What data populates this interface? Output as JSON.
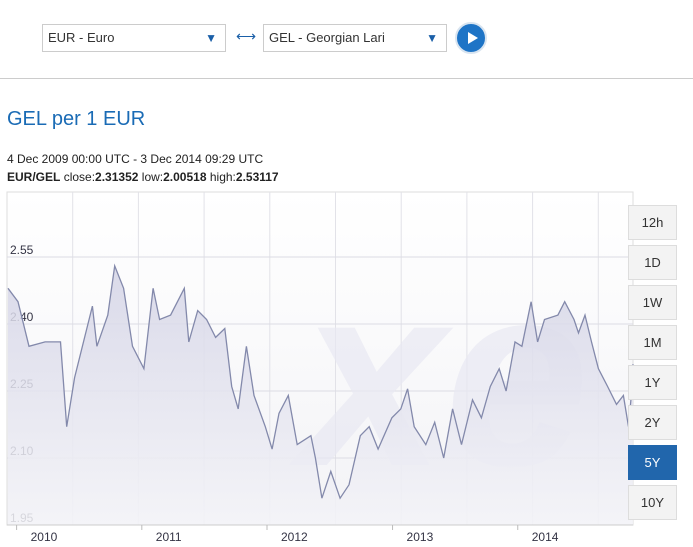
{
  "converter": {
    "from_value": "EUR - Euro",
    "to_value": "GEL - Georgian Lari",
    "swap_icon": "left-right-arrow-icon",
    "go_icon": "play-icon"
  },
  "title": "GEL per 1 EUR",
  "date_range": "4 Dec 2009 00:00 UTC - 3 Dec 2014 09:29 UTC",
  "stats": {
    "pair": "EUR/GEL",
    "close_label": "close:",
    "close": "2.31352",
    "low_label": "low:",
    "low": "2.00518",
    "high_label": "high:",
    "high": "2.53117"
  },
  "periods": [
    {
      "label": "12h"
    },
    {
      "label": "1D"
    },
    {
      "label": "1W"
    },
    {
      "label": "1M"
    },
    {
      "label": "1Y"
    },
    {
      "label": "2Y"
    },
    {
      "label": "5Y",
      "active": true
    },
    {
      "label": "10Y"
    }
  ],
  "colors": {
    "accent": "#1a6bb5",
    "line": "#8389ab",
    "fill": "#dcdcea",
    "active": "#2166ac"
  },
  "chart_data": {
    "type": "area",
    "xlabel": "",
    "ylabel": "",
    "xlim": [
      "2009-12-04",
      "2014-12-03"
    ],
    "ylim": [
      1.95,
      2.6
    ],
    "yticks": [
      "2.55",
      "2.40",
      "2.25",
      "2.10",
      "1.95"
    ],
    "xticks": [
      "2010",
      "2011",
      "2012",
      "2013",
      "2014"
    ],
    "grid": true,
    "watermark": "xe",
    "series": [
      {
        "x": [
          "2009-12-07",
          "2010-01-05",
          "2010-02-06",
          "2010-03-25",
          "2010-05-09",
          "2010-05-27",
          "2010-06-19",
          "2010-08-10",
          "2010-08-23",
          "2010-09-24",
          "2010-10-14",
          "2010-11-09",
          "2010-12-05",
          "2011-01-07",
          "2011-02-03",
          "2011-02-22",
          "2011-03-26",
          "2011-05-05",
          "2011-05-18",
          "2011-06-13",
          "2011-07-09",
          "2011-08-04",
          "2011-08-31",
          "2011-09-20",
          "2011-10-09",
          "2011-11-02",
          "2011-11-24",
          "2011-12-27",
          "2012-01-16",
          "2012-02-05",
          "2012-03-03",
          "2012-03-29",
          "2012-05-08",
          "2012-05-21",
          "2012-06-09",
          "2012-07-05",
          "2012-08-01",
          "2012-08-27",
          "2012-09-29",
          "2012-10-25",
          "2012-11-20",
          "2012-12-30",
          "2013-01-25",
          "2013-02-14",
          "2013-03-05",
          "2013-04-08",
          "2013-05-04",
          "2013-05-30",
          "2013-06-25",
          "2013-07-21",
          "2013-08-22",
          "2013-09-17",
          "2013-10-13",
          "2013-11-08",
          "2013-11-28",
          "2013-12-24",
          "2014-01-13",
          "2014-02-09",
          "2014-02-28",
          "2014-03-20",
          "2014-04-28",
          "2014-05-18",
          "2014-06-14",
          "2014-06-27",
          "2014-07-16",
          "2014-08-04",
          "2014-08-24",
          "2014-09-20",
          "2014-10-16",
          "2014-11-05",
          "2014-11-20",
          "2014-11-28",
          "2014-12-03"
        ],
        "y": [
          2.48,
          2.45,
          2.35,
          2.36,
          2.36,
          2.17,
          2.28,
          2.44,
          2.35,
          2.42,
          2.53,
          2.48,
          2.35,
          2.3,
          2.48,
          2.41,
          2.42,
          2.48,
          2.36,
          2.43,
          2.41,
          2.37,
          2.39,
          2.26,
          2.21,
          2.35,
          2.24,
          2.17,
          2.12,
          2.2,
          2.24,
          2.13,
          2.15,
          2.1,
          2.01,
          2.07,
          2.01,
          2.04,
          2.15,
          2.17,
          2.12,
          2.19,
          2.21,
          2.255,
          2.17,
          2.13,
          2.18,
          2.1,
          2.21,
          2.13,
          2.23,
          2.19,
          2.26,
          2.3,
          2.25,
          2.36,
          2.35,
          2.45,
          2.36,
          2.41,
          2.42,
          2.45,
          2.41,
          2.38,
          2.42,
          2.36,
          2.3,
          2.26,
          2.22,
          2.24,
          2.17,
          2.24,
          2.31
        ]
      }
    ]
  }
}
